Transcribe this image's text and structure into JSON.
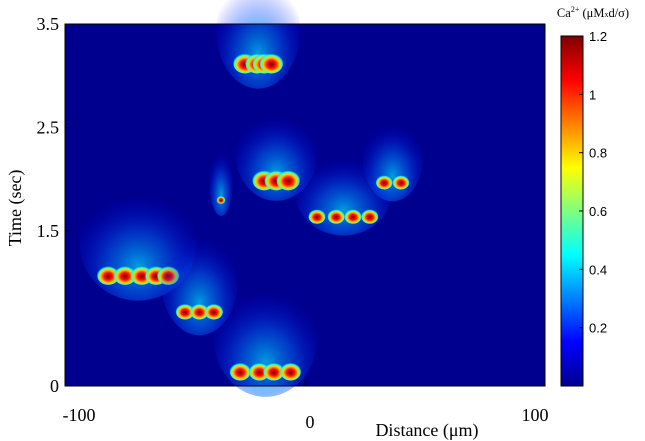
{
  "chart_data": {
    "type": "heatmap",
    "xlabel": "Distance (μm)",
    "ylabel": "Time (sec)",
    "xlim": [
      -100,
      100
    ],
    "ylim": [
      0,
      3.5
    ],
    "x_ticks": [
      {
        "value": -100,
        "label": "-100"
      },
      {
        "value": 0,
        "label": "0"
      },
      {
        "value": 100,
        "label": "100"
      }
    ],
    "y_ticks": [
      {
        "value": 0,
        "label": "0"
      },
      {
        "value": 1.5,
        "label": "1.5"
      },
      {
        "value": 2.5,
        "label": "2.5"
      },
      {
        "value": 3.5,
        "label": "3.5"
      }
    ],
    "colorbar": {
      "label_prefix": "Ca",
      "label_superscript": "2+",
      "label_units": " (μM",
      "label_times": "x",
      "label_rest": "d/σ)",
      "range": [
        0,
        1.2
      ],
      "ticks": [
        "0.2",
        "0.4",
        "0.6",
        "0.8",
        "1",
        "1.2"
      ],
      "colormap": "jet",
      "colors": [
        "#00008f",
        "#0000ff",
        "#0080ff",
        "#00ffff",
        "#80ff80",
        "#ffff00",
        "#ff8000",
        "#ff0000",
        "#800000"
      ]
    },
    "background_color": "#00008f",
    "wave_clusters": [
      {
        "x": [
          -25,
          -20,
          -17,
          -14
        ],
        "t": 3.1,
        "peak": 1.2,
        "spread_x": 12,
        "tail_t": 0.75
      },
      {
        "x": [
          -17,
          -12,
          -7
        ],
        "t": 1.97,
        "peak": 1.2,
        "spread_x": 12,
        "tail_t": 0.6
      },
      {
        "x": [
          -35
        ],
        "t": 1.78,
        "peak": 0.8,
        "spread_x": 5,
        "tail_t": 0.45
      },
      {
        "x": [
          5,
          13,
          20,
          27
        ],
        "t": 1.62,
        "peak": 1.1,
        "spread_x": 9,
        "tail_t": 0.55
      },
      {
        "x": [
          33,
          40
        ],
        "t": 1.95,
        "peak": 1.0,
        "spread_x": 9,
        "tail_t": 0.55
      },
      {
        "x": [
          -82,
          -75,
          -68,
          -62,
          -57
        ],
        "t": 1.05,
        "peak": 1.0,
        "spread_x": 12,
        "tail_t": 0.75
      },
      {
        "x": [
          -50,
          -44,
          -38
        ],
        "t": 0.7,
        "peak": 1.0,
        "spread_x": 10,
        "tail_t": 0.7
      },
      {
        "x": [
          -27,
          -19,
          -13,
          -6
        ],
        "t": 0.12,
        "peak": 1.1,
        "spread_x": 11,
        "tail_t": 0.75
      }
    ]
  }
}
